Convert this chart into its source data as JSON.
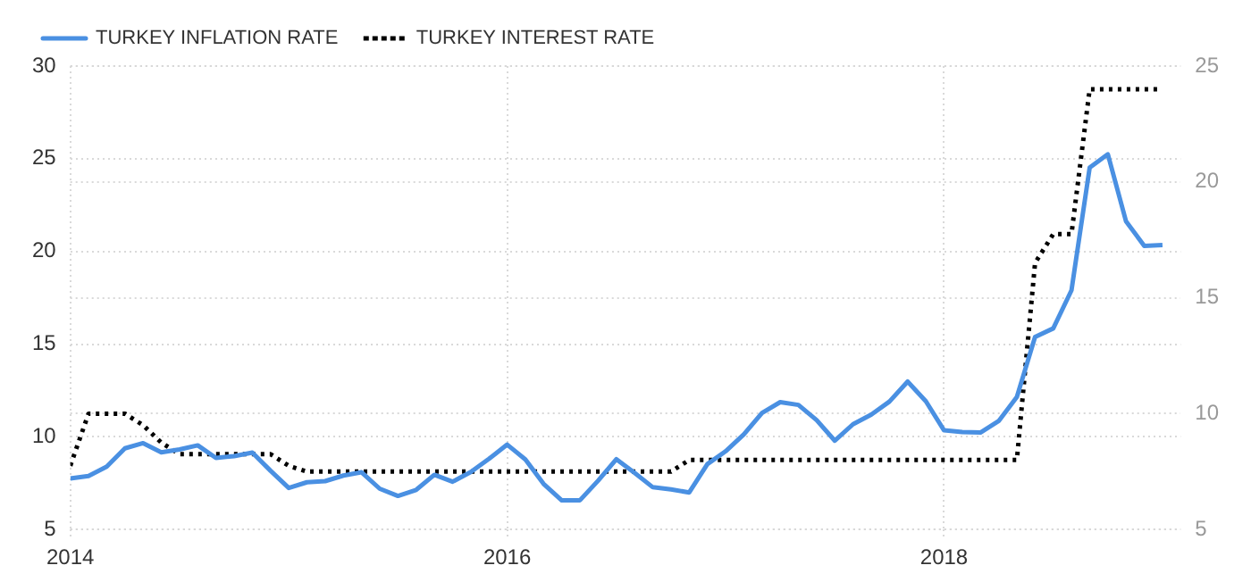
{
  "chart_data": {
    "type": "line",
    "x": [
      "2014-01",
      "2014-02",
      "2014-03",
      "2014-04",
      "2014-05",
      "2014-06",
      "2014-07",
      "2014-08",
      "2014-09",
      "2014-10",
      "2014-11",
      "2014-12",
      "2015-01",
      "2015-02",
      "2015-03",
      "2015-04",
      "2015-05",
      "2015-06",
      "2015-07",
      "2015-08",
      "2015-09",
      "2015-10",
      "2015-11",
      "2015-12",
      "2016-01",
      "2016-02",
      "2016-03",
      "2016-04",
      "2016-05",
      "2016-06",
      "2016-07",
      "2016-08",
      "2016-09",
      "2016-10",
      "2016-11",
      "2016-12",
      "2017-01",
      "2017-02",
      "2017-03",
      "2017-04",
      "2017-05",
      "2017-06",
      "2017-07",
      "2017-08",
      "2017-09",
      "2017-10",
      "2017-11",
      "2017-12",
      "2018-01",
      "2018-02",
      "2018-03",
      "2018-04",
      "2018-05",
      "2018-06",
      "2018-07",
      "2018-08",
      "2018-09",
      "2018-10",
      "2018-11",
      "2018-12",
      "2019-01"
    ],
    "series": [
      {
        "name": "TURKEY INFLATION RATE",
        "color": "#4a90e2",
        "line_style": "solid",
        "values": [
          7.75,
          7.89,
          8.39,
          9.38,
          9.66,
          9.16,
          9.32,
          9.54,
          8.86,
          8.96,
          9.15,
          8.17,
          7.24,
          7.55,
          7.61,
          7.91,
          8.09,
          7.2,
          6.81,
          7.14,
          7.95,
          7.58,
          8.1,
          8.81,
          9.58,
          8.78,
          7.46,
          6.57,
          6.58,
          7.64,
          8.79,
          8.05,
          7.28,
          7.16,
          7.0,
          8.53,
          9.22,
          10.13,
          11.29,
          11.87,
          11.72,
          10.9,
          9.79,
          10.68,
          11.2,
          11.9,
          12.98,
          11.92,
          10.35,
          10.26,
          10.23,
          10.85,
          12.15,
          15.39,
          15.85,
          17.9,
          24.52,
          25.24,
          21.62,
          20.3,
          20.35
        ]
      },
      {
        "name": "TURKEY INTEREST RATE",
        "color": "#000000",
        "line_style": "dotted",
        "axis": "y2",
        "values": [
          7.75,
          10,
          10,
          10,
          9.5,
          8.75,
          8.25,
          8.25,
          8.25,
          8.25,
          8.25,
          8.25,
          7.75,
          7.5,
          7.5,
          7.5,
          7.5,
          7.5,
          7.5,
          7.5,
          7.5,
          7.5,
          7.5,
          7.5,
          7.5,
          7.5,
          7.5,
          7.5,
          7.5,
          7.5,
          7.5,
          7.5,
          7.5,
          7.5,
          8,
          8,
          8,
          8,
          8,
          8,
          8,
          8,
          8,
          8,
          8,
          8,
          8,
          8,
          8,
          8,
          8,
          8,
          8,
          16.5,
          17.75,
          17.75,
          24,
          24,
          24,
          24,
          24
        ]
      }
    ],
    "xlim": [
      "2014-01",
      "2019-02"
    ],
    "xticks": [
      "2014",
      "2016",
      "2018"
    ],
    "ylim": [
      5,
      30
    ],
    "yticks": [
      5,
      10,
      15,
      20,
      25,
      30
    ],
    "y2lim": [
      5,
      25
    ],
    "y2ticks": [
      5,
      10,
      15,
      20,
      25
    ],
    "grid": true,
    "legend": "top left",
    "marker": "none"
  }
}
